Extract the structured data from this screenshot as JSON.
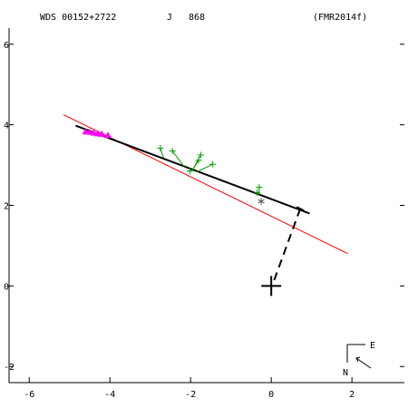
{
  "header": {
    "wds": "WDS 00152+2722",
    "discoverer": "J",
    "number": "868",
    "reference": "(FMR2014f)"
  },
  "compass": {
    "east_label": "E",
    "north_label": "N"
  },
  "colors": {
    "axis": "#000000",
    "orbit": "#000000",
    "fit_line": "#ff0000",
    "measures_visual": "#00a000",
    "measures_speckle": "#ff00ff",
    "predicted_marker": "#555555"
  },
  "chart_data": {
    "type": "scatter",
    "xlim": [
      -6.5,
      3.3
    ],
    "ylim": [
      -2.4,
      6.4
    ],
    "x_ticks": [
      -6,
      -4,
      -2,
      0,
      2
    ],
    "y_ticks": [
      -2,
      0,
      2,
      4,
      6
    ],
    "x_tick_labels": [
      "-6",
      "-4",
      "-2",
      "0",
      "2"
    ],
    "y_tick_labels": [
      "-2",
      "0",
      "2",
      "4",
      "6"
    ],
    "primary": [
      0,
      0
    ],
    "orbit_segment": [
      [
        -4.85,
        3.98
      ],
      [
        0.95,
        1.8
      ]
    ],
    "linear_fit": [
      [
        -5.15,
        4.25
      ],
      [
        1.9,
        0.8
      ]
    ],
    "periastron_line": [
      [
        0.72,
        1.92
      ],
      [
        0.02,
        0.0
      ]
    ],
    "measures_visual": [
      {
        "obs": [
          -2.75,
          3.42
        ],
        "calc": [
          -2.67,
          3.18
        ]
      },
      {
        "obs": [
          -2.45,
          3.35
        ],
        "calc": [
          -2.15,
          2.95
        ]
      },
      {
        "obs": [
          -1.75,
          3.25
        ],
        "calc": [
          -1.95,
          2.88
        ]
      },
      {
        "obs": [
          -1.8,
          3.12
        ],
        "calc": [
          -1.95,
          2.88
        ]
      },
      {
        "obs": [
          -1.45,
          3.02
        ],
        "calc": [
          -1.85,
          2.83
        ]
      },
      {
        "obs": [
          -2.02,
          2.85
        ],
        "calc": [
          -1.95,
          2.88
        ]
      },
      {
        "obs": [
          -0.3,
          2.45
        ],
        "calc": [
          -0.3,
          2.28
        ]
      },
      {
        "obs": [
          -0.35,
          2.32
        ],
        "calc": [
          -0.3,
          2.28
        ]
      }
    ],
    "measures_speckle": [
      [
        -4.6,
        3.83
      ],
      [
        -4.5,
        3.82
      ],
      [
        -4.4,
        3.8
      ],
      [
        -4.3,
        3.78
      ],
      [
        -4.2,
        3.77
      ],
      [
        -4.05,
        3.74
      ]
    ],
    "predicted_position": [
      -0.25,
      2.1
    ]
  }
}
